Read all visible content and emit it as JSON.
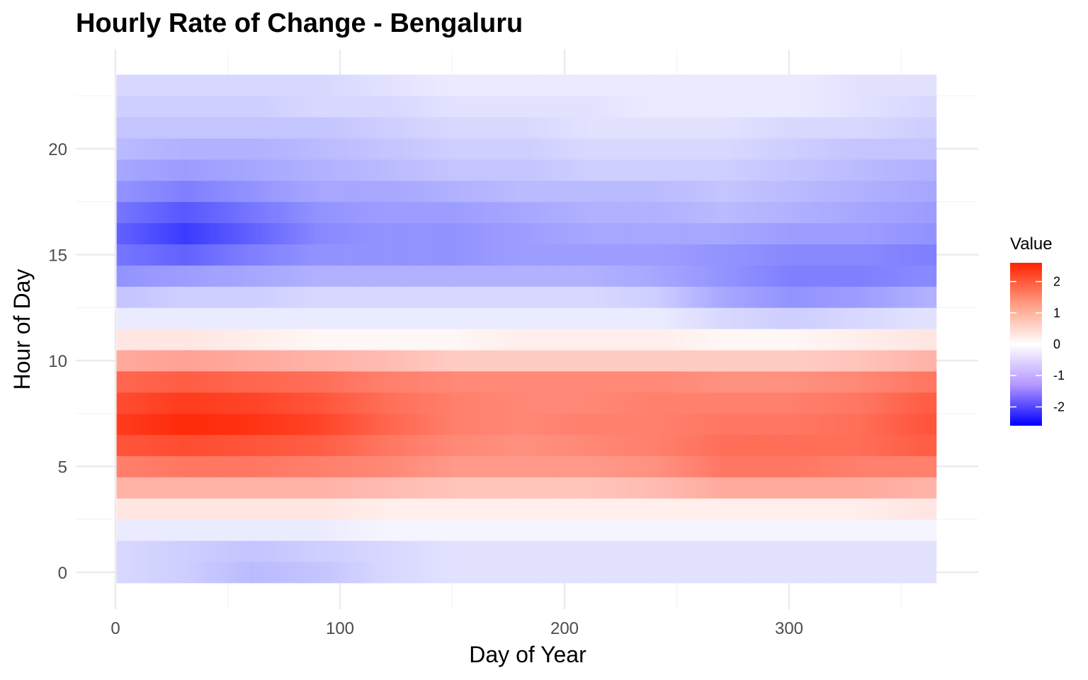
{
  "chart_data": {
    "type": "heatmap",
    "title": "Hourly Rate of Change - Bengaluru",
    "xlabel": "Day of Year",
    "ylabel": "Hour of Day",
    "xlim": [
      0,
      365
    ],
    "ylim": [
      0,
      23
    ],
    "x_ticks": [
      0,
      100,
      200,
      300
    ],
    "y_ticks": [
      0,
      5,
      10,
      15,
      20
    ],
    "x": [
      1,
      31,
      61,
      91,
      121,
      151,
      181,
      211,
      241,
      271,
      301,
      331,
      361
    ],
    "hours": [
      0,
      1,
      2,
      3,
      4,
      5,
      6,
      7,
      8,
      9,
      10,
      11,
      12,
      13,
      14,
      15,
      16,
      17,
      18,
      19,
      20,
      21,
      22,
      23
    ],
    "values": [
      [
        -0.4,
        -0.5,
        -0.7,
        -0.6,
        -0.4,
        -0.3,
        -0.3,
        -0.3,
        -0.3,
        -0.3,
        -0.3,
        -0.3,
        -0.3
      ],
      [
        -0.4,
        -0.5,
        -0.6,
        -0.5,
        -0.4,
        -0.3,
        -0.3,
        -0.3,
        -0.3,
        -0.3,
        -0.3,
        -0.3,
        -0.3
      ],
      [
        -0.2,
        -0.2,
        -0.2,
        -0.2,
        -0.1,
        -0.1,
        -0.1,
        -0.1,
        -0.1,
        -0.1,
        -0.1,
        -0.1,
        -0.1
      ],
      [
        0.3,
        0.3,
        0.3,
        0.3,
        0.2,
        0.2,
        0.2,
        0.2,
        0.2,
        0.2,
        0.2,
        0.2,
        0.3
      ],
      [
        0.9,
        0.9,
        0.9,
        0.9,
        0.8,
        0.7,
        0.7,
        0.7,
        0.8,
        1.0,
        1.0,
        1.0,
        0.9
      ],
      [
        1.5,
        1.6,
        1.6,
        1.5,
        1.4,
        1.2,
        1.2,
        1.2,
        1.3,
        1.6,
        1.6,
        1.5,
        1.5
      ],
      [
        2.0,
        2.1,
        2.0,
        1.9,
        1.6,
        1.4,
        1.3,
        1.4,
        1.5,
        1.7,
        1.7,
        1.7,
        1.9
      ],
      [
        2.3,
        2.5,
        2.4,
        2.2,
        1.8,
        1.5,
        1.4,
        1.5,
        1.5,
        1.6,
        1.6,
        1.7,
        2.0
      ],
      [
        2.1,
        2.3,
        2.2,
        2.0,
        1.7,
        1.5,
        1.4,
        1.4,
        1.5,
        1.5,
        1.5,
        1.6,
        1.9
      ],
      [
        1.8,
        1.9,
        1.8,
        1.7,
        1.5,
        1.4,
        1.4,
        1.4,
        1.4,
        1.3,
        1.3,
        1.4,
        1.6
      ],
      [
        1.0,
        1.1,
        1.0,
        0.9,
        0.8,
        0.6,
        0.6,
        0.6,
        0.6,
        0.6,
        0.6,
        0.7,
        0.9
      ],
      [
        0.3,
        0.3,
        0.2,
        0.1,
        0.1,
        0.1,
        0.2,
        0.2,
        0.2,
        0.1,
        0.1,
        0.2,
        0.3
      ],
      [
        -0.2,
        -0.2,
        -0.2,
        -0.2,
        -0.2,
        -0.2,
        -0.2,
        -0.2,
        -0.2,
        -0.4,
        -0.5,
        -0.4,
        -0.3
      ],
      [
        -0.6,
        -0.5,
        -0.5,
        -0.4,
        -0.4,
        -0.4,
        -0.4,
        -0.4,
        -0.5,
        -0.9,
        -1.1,
        -1.0,
        -0.8
      ],
      [
        -1.1,
        -1.0,
        -0.9,
        -0.8,
        -0.8,
        -0.8,
        -0.8,
        -0.8,
        -0.9,
        -1.1,
        -1.3,
        -1.3,
        -1.2
      ],
      [
        -1.4,
        -1.6,
        -1.3,
        -1.1,
        -1.1,
        -1.1,
        -1.0,
        -1.0,
        -1.0,
        -1.1,
        -1.2,
        -1.2,
        -1.3
      ],
      [
        -1.6,
        -2.0,
        -1.6,
        -1.2,
        -1.1,
        -1.1,
        -1.0,
        -0.9,
        -0.9,
        -0.9,
        -1.0,
        -1.0,
        -1.1
      ],
      [
        -1.4,
        -1.7,
        -1.4,
        -1.1,
        -1.0,
        -1.0,
        -0.9,
        -0.8,
        -0.8,
        -0.7,
        -0.8,
        -0.9,
        -1.0
      ],
      [
        -1.1,
        -1.3,
        -1.1,
        -0.9,
        -0.9,
        -0.8,
        -0.7,
        -0.7,
        -0.7,
        -0.6,
        -0.7,
        -0.8,
        -0.9
      ],
      [
        -0.9,
        -1.0,
        -0.9,
        -0.8,
        -0.7,
        -0.6,
        -0.6,
        -0.5,
        -0.5,
        -0.5,
        -0.6,
        -0.7,
        -0.8
      ],
      [
        -0.7,
        -0.8,
        -0.8,
        -0.7,
        -0.6,
        -0.5,
        -0.5,
        -0.4,
        -0.4,
        -0.4,
        -0.5,
        -0.6,
        -0.6
      ],
      [
        -0.6,
        -0.6,
        -0.6,
        -0.6,
        -0.5,
        -0.4,
        -0.4,
        -0.3,
        -0.3,
        -0.3,
        -0.4,
        -0.4,
        -0.5
      ],
      [
        -0.5,
        -0.5,
        -0.5,
        -0.4,
        -0.4,
        -0.3,
        -0.3,
        -0.3,
        -0.2,
        -0.2,
        -0.2,
        -0.3,
        -0.4
      ],
      [
        -0.4,
        -0.4,
        -0.4,
        -0.4,
        -0.3,
        -0.2,
        -0.2,
        -0.2,
        -0.2,
        -0.2,
        -0.2,
        -0.3,
        -0.3
      ]
    ],
    "legend": {
      "title": "Value",
      "position": "right",
      "breaks": [
        2,
        1,
        0,
        -1,
        -2
      ],
      "labels": [
        "2",
        "1",
        "0",
        "-1",
        "-2"
      ],
      "range": [
        -2.6,
        2.6
      ]
    },
    "colors": {
      "low": "#0000ff",
      "mid": "#ffffff",
      "high": "#ff2200"
    },
    "grid": true
  }
}
